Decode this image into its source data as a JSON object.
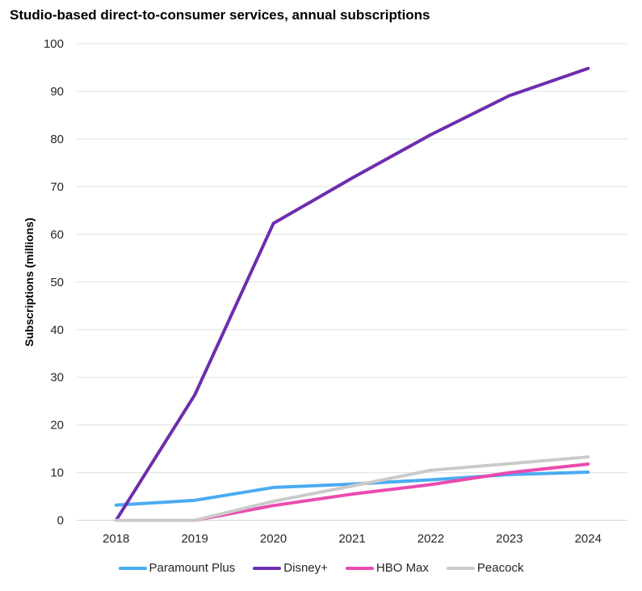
{
  "chart_data": {
    "type": "line",
    "title": "Studio-based direct-to-consumer services, annual subscriptions",
    "xlabel": "",
    "ylabel": "Subscriptions (millions)",
    "x": [
      "2018",
      "2019",
      "2020",
      "2021",
      "2022",
      "2023",
      "2024"
    ],
    "ylim": [
      0,
      100
    ],
    "yticks": [
      0,
      10,
      20,
      30,
      40,
      50,
      60,
      70,
      80,
      90,
      100
    ],
    "grid": true,
    "legend_position": "bottom",
    "series": [
      {
        "name": "Paramount Plus",
        "color": "#4AABF2",
        "values": [
          3.2,
          4.2,
          6.9,
          7.6,
          8.5,
          9.6,
          10.1
        ]
      },
      {
        "name": "Disney+",
        "color": "#6E2DAE",
        "values": [
          0,
          26.3,
          62.3,
          71.8,
          80.9,
          89.1,
          94.8
        ]
      },
      {
        "name": "HBO Max",
        "color": "#EB4AB0",
        "values": [
          null,
          0,
          3.1,
          5.5,
          7.5,
          10.0,
          11.8
        ]
      },
      {
        "name": "Peacock",
        "color": "#CACACA",
        "values": [
          0,
          0,
          4.0,
          7.2,
          10.5,
          11.9,
          13.3
        ]
      }
    ]
  }
}
